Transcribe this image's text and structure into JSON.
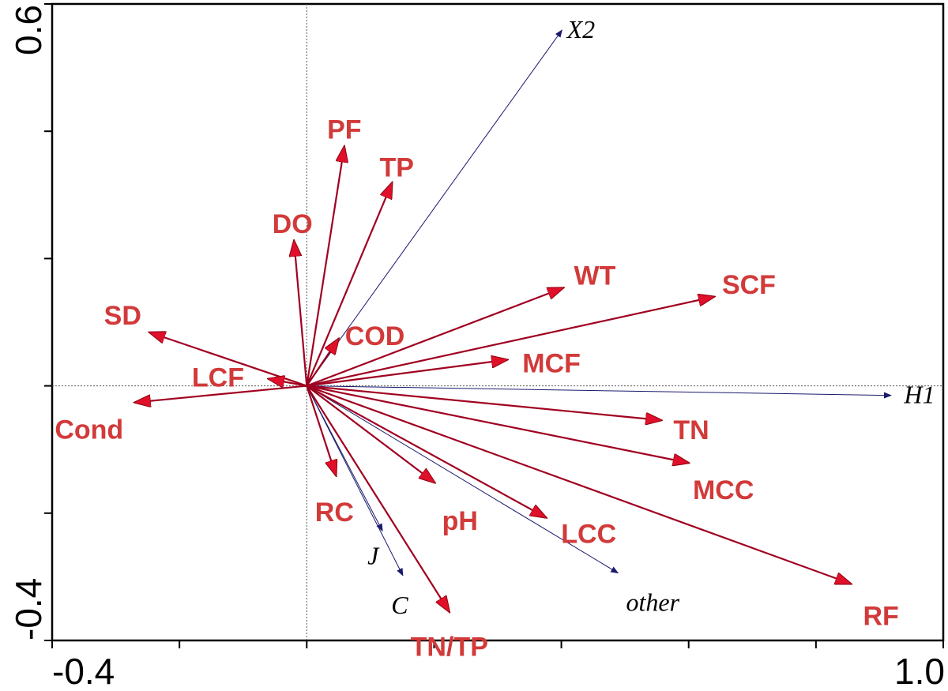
{
  "chart_data": {
    "type": "scatter",
    "subtype": "biplot-arrows",
    "title": "",
    "xlabel": "",
    "ylabel": "",
    "xlim": [
      -0.4,
      1.0
    ],
    "ylim": [
      -0.4,
      0.6
    ],
    "x_ticks_labeled": [
      "-0.4",
      "1.0"
    ],
    "y_ticks_labeled": [
      "-0.4",
      "0.6"
    ],
    "grid": false,
    "origin_lines": "dotted",
    "colors": {
      "environment": "#c0102a",
      "environment_label": "#d23a3a",
      "species": "#1a1a6e"
    },
    "environment_vectors": [
      {
        "name": "PF",
        "x": 0.059,
        "y": 0.376
      },
      {
        "name": "TP",
        "x": 0.134,
        "y": 0.319
      },
      {
        "name": "DO",
        "x": -0.02,
        "y": 0.228
      },
      {
        "name": "WT",
        "x": 0.403,
        "y": 0.154
      },
      {
        "name": "SCF",
        "x": 0.64,
        "y": 0.14
      },
      {
        "name": "COD",
        "x": 0.05,
        "y": 0.074
      },
      {
        "name": "MCF",
        "x": 0.315,
        "y": 0.041
      },
      {
        "name": "SD",
        "x": -0.247,
        "y": 0.084
      },
      {
        "name": "LCF",
        "x": -0.06,
        "y": 0.011
      },
      {
        "name": "Cond",
        "x": -0.27,
        "y": -0.026
      },
      {
        "name": "TN",
        "x": 0.557,
        "y": -0.054
      },
      {
        "name": "MCC",
        "x": 0.6,
        "y": -0.121
      },
      {
        "name": "RC",
        "x": 0.046,
        "y": -0.141
      },
      {
        "name": "pH",
        "x": 0.201,
        "y": -0.152
      },
      {
        "name": "LCC",
        "x": 0.376,
        "y": -0.207
      },
      {
        "name": "RF",
        "x": 0.855,
        "y": -0.311
      },
      {
        "name": "TN/TP",
        "x": 0.224,
        "y": -0.355
      }
    ],
    "species_vectors": [
      {
        "name": "X2",
        "x": 0.401,
        "y": 0.559
      },
      {
        "name": "H1",
        "x": 0.918,
        "y": -0.015
      },
      {
        "name": "J",
        "x": 0.119,
        "y": -0.228
      },
      {
        "name": "C",
        "x": 0.151,
        "y": -0.298
      },
      {
        "name": "other",
        "x": 0.489,
        "y": -0.294
      }
    ]
  }
}
